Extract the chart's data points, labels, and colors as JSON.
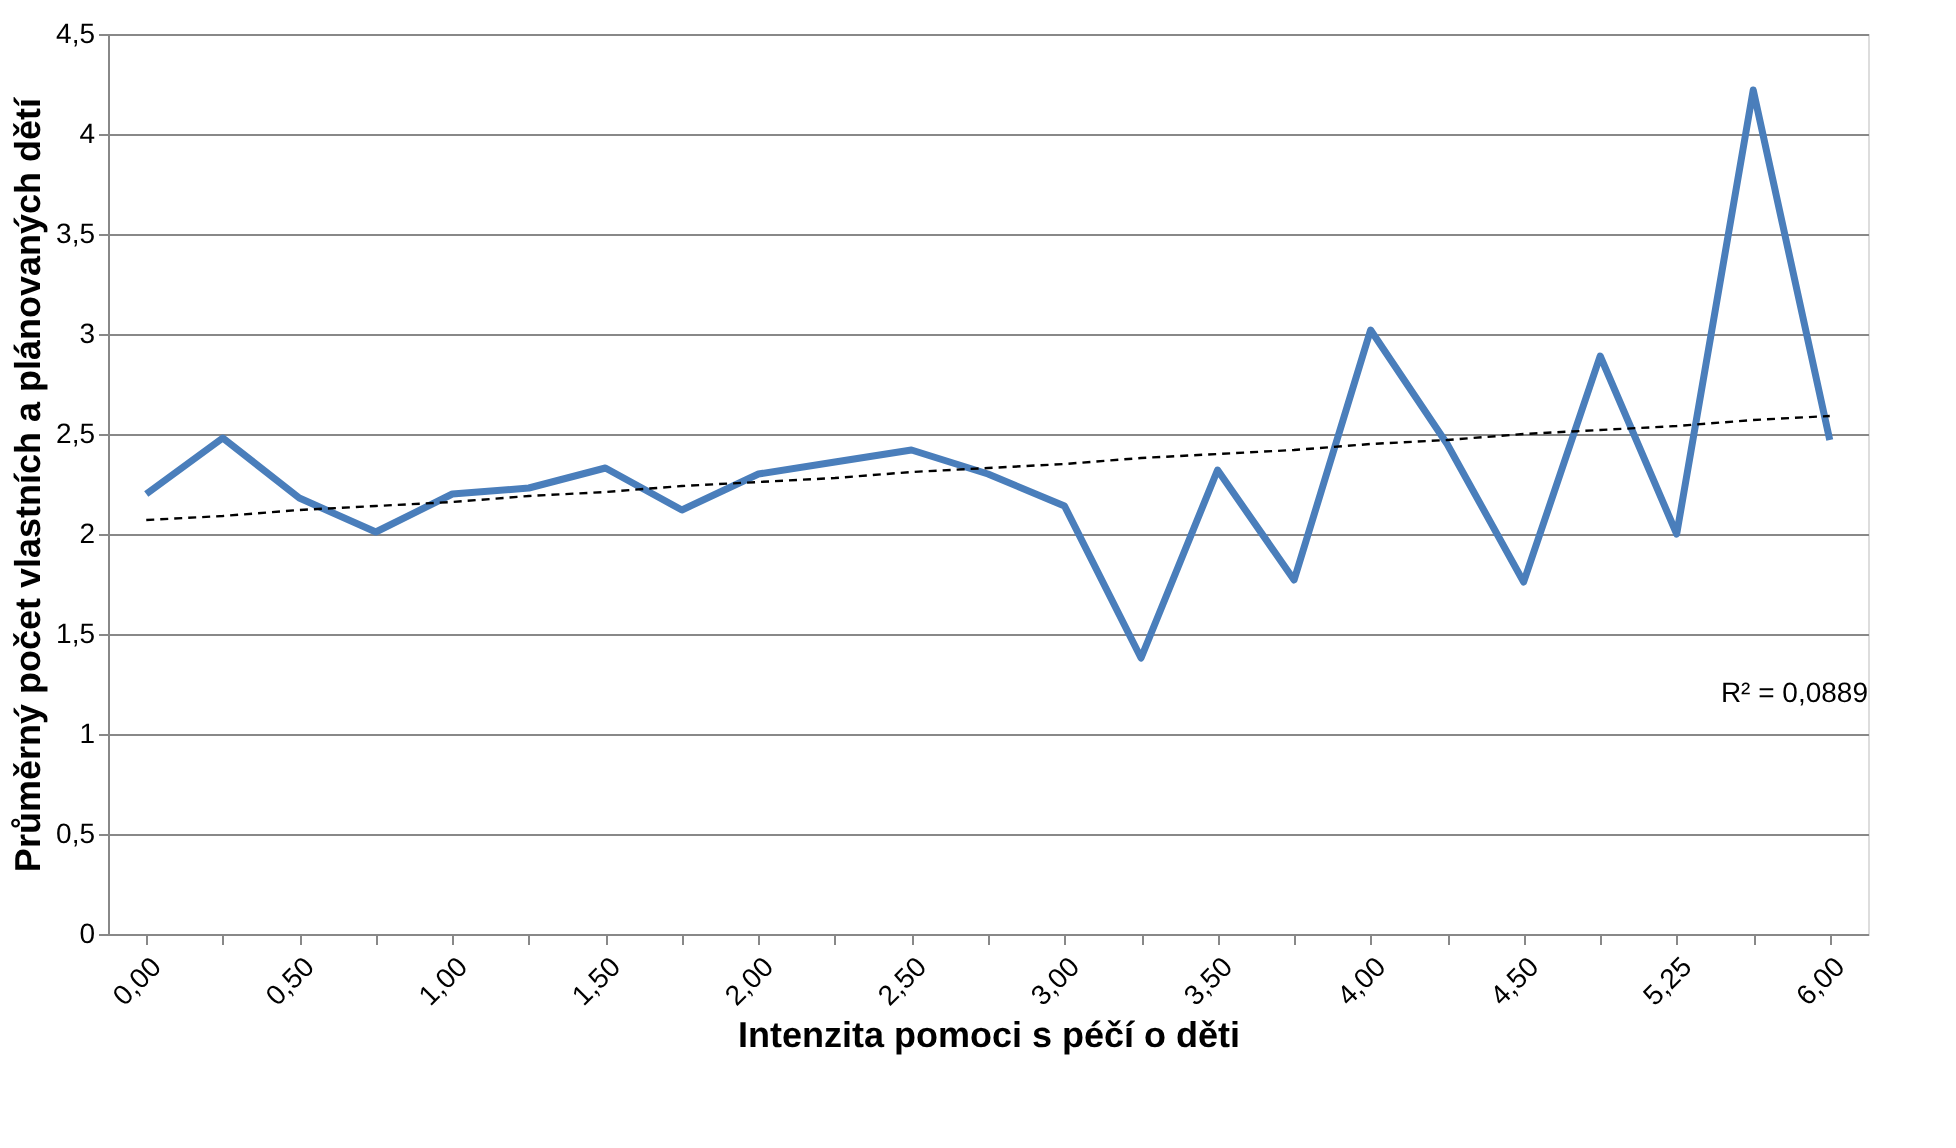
{
  "chart_data": {
    "type": "line",
    "xlabel": "Intenzita pomoci s péčí o děti",
    "ylabel": "Průměrný počet vlastních a plánovaných dětí",
    "categories": [
      "0,00",
      null,
      "0,50",
      null,
      "1,00",
      null,
      "1,50",
      null,
      "2,00",
      null,
      "2,50",
      null,
      "3,00",
      null,
      "3,50",
      null,
      "4,00",
      null,
      "4,50",
      null,
      "5,25",
      null,
      "6,00"
    ],
    "series": [
      {
        "color": "#4a7ebb",
        "line_style": "solid",
        "values": [
          2.2,
          2.48,
          2.18,
          2.01,
          2.2,
          2.23,
          2.33,
          2.12,
          2.3,
          2.36,
          2.42,
          2.3,
          2.14,
          1.38,
          2.32,
          1.77,
          3.02,
          2.45,
          1.76,
          2.89,
          2.0,
          4.22,
          2.47
        ]
      },
      {
        "color": "#000000",
        "line_style": "dashed",
        "values": [
          2.07,
          2.09,
          2.12,
          2.14,
          2.16,
          2.19,
          2.21,
          2.24,
          2.26,
          2.28,
          2.31,
          2.33,
          2.35,
          2.38,
          2.4,
          2.42,
          2.45,
          2.47,
          2.5,
          2.52,
          2.54,
          2.57,
          2.59
        ]
      }
    ],
    "ylim": [
      0,
      4.5
    ],
    "yticks": [
      0,
      {
        "value": 0.5,
        "label": "0,5"
      },
      1,
      {
        "value": 1.5,
        "label": "1,5"
      },
      2,
      {
        "value": 2.5,
        "label": "2,5"
      },
      3,
      {
        "value": 3.5,
        "label": "3,5"
      },
      4,
      {
        "value": 4.5,
        "label": "4,5"
      }
    ],
    "grid": "y",
    "marker": "none",
    "annotations": [
      "R² = 0,0889"
    ]
  }
}
